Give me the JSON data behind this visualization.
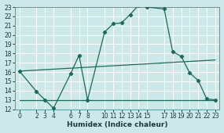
{
  "xlabel": "Humidex (Indice chaleur)",
  "bg_color": "#cce8e8",
  "grid_color": "#ffffff",
  "line_color": "#1a6b5a",
  "xmin": -0.5,
  "xmax": 23.5,
  "ymin": 12,
  "ymax": 23,
  "xticks": [
    0,
    2,
    3,
    4,
    6,
    7,
    8,
    10,
    11,
    12,
    13,
    14,
    15,
    17,
    18,
    19,
    20,
    21,
    22,
    23
  ],
  "yticks": [
    12,
    13,
    14,
    15,
    16,
    17,
    18,
    19,
    20,
    21,
    22,
    23
  ],
  "line1_x": [
    0,
    2,
    3,
    4,
    6,
    7,
    8,
    10,
    11,
    12,
    13,
    14,
    15,
    17,
    18,
    19,
    20,
    21,
    22,
    23
  ],
  "line1_y": [
    16.1,
    13.9,
    13.0,
    12.1,
    15.8,
    17.8,
    13.0,
    20.3,
    21.2,
    21.3,
    22.2,
    23.2,
    23.0,
    22.8,
    18.2,
    17.7,
    15.9,
    15.1,
    13.1,
    13.0
  ],
  "line2_x": [
    0,
    23
  ],
  "line2_y": [
    13,
    13
  ],
  "line3_x": [
    0,
    23
  ],
  "line3_y": [
    16.1,
    17.3
  ]
}
